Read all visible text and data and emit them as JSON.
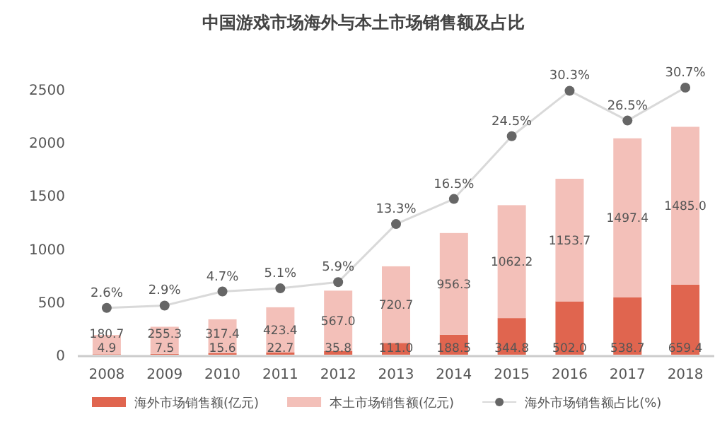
{
  "chart_data": {
    "type": "bar",
    "title": "中国游戏市场海外与本土市场销售额及占比",
    "categories": [
      "2008",
      "2009",
      "2010",
      "2011",
      "2012",
      "2013",
      "2014",
      "2015",
      "2016",
      "2017",
      "2018"
    ],
    "stacked": true,
    "series": [
      {
        "name": "海外市场销售额(亿元)",
        "color": "#e0654f",
        "values": [
          4.9,
          7.5,
          15.6,
          22.7,
          35.8,
          111.0,
          188.5,
          344.8,
          502.0,
          538.7,
          659.4
        ],
        "value_labels": [
          "4.9",
          "7.5",
          "15.6",
          "22.7",
          "35.8",
          "111.0",
          "188.5",
          "344.8",
          "502.0",
          "538.7",
          "659.4"
        ]
      },
      {
        "name": "本土市场销售额(亿元)",
        "color": "#f3c0b9",
        "values": [
          180.7,
          255.3,
          317.4,
          423.4,
          567.0,
          720.7,
          956.3,
          1062.2,
          1153.7,
          1497.4,
          1485.0
        ],
        "value_labels": [
          "180.7",
          "255.3",
          "317.4",
          "423.4",
          "567.0",
          "720.7",
          "956.3",
          "1062.2",
          "1153.7",
          "1497.4",
          "1485.0"
        ]
      },
      {
        "name": "海外市场销售额占比(%)",
        "type": "line",
        "axis": "y2",
        "marker": "circle",
        "color": "#666666",
        "values": [
          2.6,
          2.9,
          4.7,
          5.1,
          5.9,
          13.3,
          16.5,
          24.5,
          30.3,
          26.5,
          30.7
        ],
        "value_labels": [
          "2.6%",
          "2.9%",
          "4.7%",
          "5.1%",
          "5.9%",
          "13.3%",
          "16.5%",
          "24.5%",
          "30.3%",
          "26.5%",
          "30.7%"
        ]
      }
    ],
    "ylim": [
      0,
      2500
    ],
    "yticks": [
      0,
      500,
      1000,
      1500,
      2000,
      2500
    ],
    "grid": false,
    "legend": "bottom"
  }
}
